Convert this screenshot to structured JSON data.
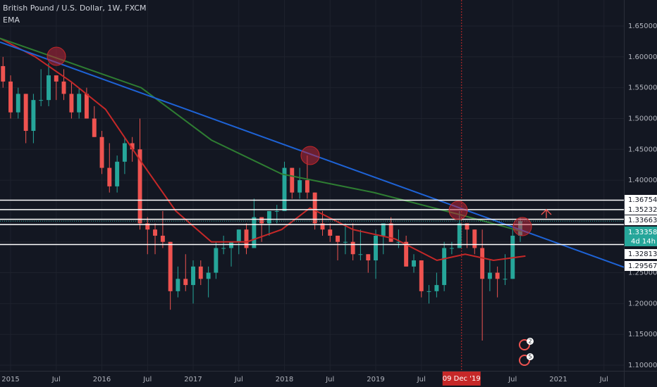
{
  "chart_data": {
    "type": "candlestick",
    "title": "British Pound / U.S. Dollar, 1W, FXCM",
    "subtitle": "EMA",
    "xlim": [
      2014.884,
      2021.718
    ],
    "ylim": [
      1.0909,
      1.6922
    ],
    "yticks": [
      {
        "value": 1.1,
        "label": "1.10000"
      },
      {
        "value": 1.15,
        "label": "1.15000"
      },
      {
        "value": 1.2,
        "label": "1.20000"
      },
      {
        "value": 1.25,
        "label": "1.25000"
      },
      {
        "value": 1.3,
        "label": "1.30000"
      },
      {
        "value": 1.35,
        "label": "1.35000"
      },
      {
        "value": 1.4,
        "label": "1.40000"
      },
      {
        "value": 1.45,
        "label": "1.45000"
      },
      {
        "value": 1.5,
        "label": "1.50000"
      },
      {
        "value": 1.55,
        "label": "1.55000"
      },
      {
        "value": 1.6,
        "label": "1.60000"
      },
      {
        "value": 1.65,
        "label": "1.65000"
      }
    ],
    "xticks": [
      2015,
      {
        "value": 2015.5,
        "label": "Jul"
      },
      2016,
      {
        "value": 2016.5,
        "label": "Jul"
      },
      2017,
      {
        "value": 2017.5,
        "label": "Jul"
      },
      2018,
      {
        "value": 2018.5,
        "label": "Jul"
      },
      2019,
      {
        "value": 2019.5,
        "label": "Jul"
      },
      {
        "value": 2020.5,
        "label": "Jul"
      },
      2021,
      {
        "value": 2021.5,
        "label": "Jul"
      }
    ],
    "grid": true,
    "up_color": "#26a69a",
    "down_color": "#ef5350",
    "x": [
      2014.917,
      2015.0,
      2015.083,
      2015.167,
      2015.25,
      2015.333,
      2015.417,
      2015.5,
      2015.583,
      2015.667,
      2015.75,
      2015.833,
      2015.917,
      2016.0,
      2016.083,
      2016.167,
      2016.25,
      2016.333,
      2016.417,
      2016.5,
      2016.583,
      2016.667,
      2016.75,
      2016.833,
      2016.917,
      2017.0,
      2017.083,
      2017.167,
      2017.25,
      2017.333,
      2017.417,
      2017.5,
      2017.583,
      2017.667,
      2017.75,
      2017.833,
      2017.917,
      2018.0,
      2018.083,
      2018.167,
      2018.25,
      2018.333,
      2018.417,
      2018.5,
      2018.583,
      2018.667,
      2018.75,
      2018.833,
      2018.917,
      2019.0,
      2019.083,
      2019.167,
      2019.25,
      2019.333,
      2019.417,
      2019.5,
      2019.583,
      2019.667,
      2019.75,
      2019.833,
      2019.917,
      2020.0,
      2020.083,
      2020.167,
      2020.25,
      2020.333,
      2020.417,
      2020.5,
      2020.583
    ],
    "ohlc": [
      [
        1.585,
        1.6,
        1.55,
        1.56
      ],
      [
        1.56,
        1.57,
        1.5,
        1.51
      ],
      [
        1.51,
        1.55,
        1.5,
        1.54
      ],
      [
        1.54,
        1.54,
        1.46,
        1.48
      ],
      [
        1.48,
        1.54,
        1.46,
        1.53
      ],
      [
        1.53,
        1.58,
        1.52,
        1.53
      ],
      [
        1.53,
        1.59,
        1.52,
        1.57
      ],
      [
        1.57,
        1.57,
        1.53,
        1.56
      ],
      [
        1.56,
        1.58,
        1.53,
        1.54
      ],
      [
        1.54,
        1.56,
        1.5,
        1.51
      ],
      [
        1.51,
        1.55,
        1.5,
        1.54
      ],
      [
        1.54,
        1.55,
        1.5,
        1.5
      ],
      [
        1.5,
        1.52,
        1.47,
        1.47
      ],
      [
        1.47,
        1.48,
        1.41,
        1.42
      ],
      [
        1.42,
        1.46,
        1.38,
        1.39
      ],
      [
        1.39,
        1.44,
        1.38,
        1.43
      ],
      [
        1.43,
        1.47,
        1.41,
        1.46
      ],
      [
        1.46,
        1.47,
        1.43,
        1.45
      ],
      [
        1.45,
        1.5,
        1.32,
        1.33
      ],
      [
        1.33,
        1.34,
        1.28,
        1.32
      ],
      [
        1.32,
        1.33,
        1.28,
        1.31
      ],
      [
        1.31,
        1.35,
        1.29,
        1.3
      ],
      [
        1.3,
        1.3,
        1.19,
        1.22
      ],
      [
        1.22,
        1.26,
        1.21,
        1.24
      ],
      [
        1.24,
        1.28,
        1.22,
        1.23
      ],
      [
        1.23,
        1.27,
        1.2,
        1.26
      ],
      [
        1.26,
        1.27,
        1.23,
        1.24
      ],
      [
        1.24,
        1.26,
        1.21,
        1.25
      ],
      [
        1.25,
        1.3,
        1.24,
        1.29
      ],
      [
        1.29,
        1.31,
        1.28,
        1.29
      ],
      [
        1.29,
        1.3,
        1.26,
        1.3
      ],
      [
        1.3,
        1.32,
        1.28,
        1.32
      ],
      [
        1.32,
        1.33,
        1.28,
        1.29
      ],
      [
        1.29,
        1.37,
        1.29,
        1.34
      ],
      [
        1.34,
        1.34,
        1.3,
        1.33
      ],
      [
        1.33,
        1.35,
        1.31,
        1.35
      ],
      [
        1.35,
        1.36,
        1.33,
        1.35
      ],
      [
        1.35,
        1.43,
        1.35,
        1.42
      ],
      [
        1.42,
        1.42,
        1.37,
        1.38
      ],
      [
        1.38,
        1.42,
        1.37,
        1.4
      ],
      [
        1.4,
        1.44,
        1.37,
        1.38
      ],
      [
        1.38,
        1.38,
        1.32,
        1.33
      ],
      [
        1.33,
        1.35,
        1.31,
        1.32
      ],
      [
        1.32,
        1.33,
        1.3,
        1.31
      ],
      [
        1.31,
        1.31,
        1.27,
        1.3
      ],
      [
        1.3,
        1.33,
        1.28,
        1.3
      ],
      [
        1.3,
        1.33,
        1.27,
        1.28
      ],
      [
        1.28,
        1.32,
        1.27,
        1.28
      ],
      [
        1.28,
        1.28,
        1.25,
        1.27
      ],
      [
        1.27,
        1.32,
        1.24,
        1.31
      ],
      [
        1.31,
        1.33,
        1.28,
        1.33
      ],
      [
        1.33,
        1.34,
        1.3,
        1.3
      ],
      [
        1.3,
        1.32,
        1.29,
        1.3
      ],
      [
        1.3,
        1.31,
        1.26,
        1.26
      ],
      [
        1.26,
        1.28,
        1.25,
        1.27
      ],
      [
        1.27,
        1.27,
        1.21,
        1.22
      ],
      [
        1.22,
        1.23,
        1.2,
        1.22
      ],
      [
        1.22,
        1.25,
        1.21,
        1.23
      ],
      [
        1.23,
        1.3,
        1.22,
        1.29
      ],
      [
        1.29,
        1.3,
        1.28,
        1.29
      ],
      [
        1.29,
        1.35,
        1.29,
        1.33
      ],
      [
        1.33,
        1.33,
        1.29,
        1.32
      ],
      [
        1.32,
        1.32,
        1.28,
        1.29
      ],
      [
        1.29,
        1.32,
        1.14,
        1.24
      ],
      [
        1.24,
        1.27,
        1.22,
        1.25
      ],
      [
        1.25,
        1.26,
        1.21,
        1.24
      ],
      [
        1.24,
        1.28,
        1.23,
        1.24
      ],
      [
        1.24,
        1.32,
        1.24,
        1.31
      ],
      [
        1.31,
        1.34,
        1.3,
        1.33358
      ]
    ],
    "lines": [
      {
        "color": "#c62828",
        "x": [
          2014.884,
          2015.27,
          2015.66,
          2016.04,
          2016.43,
          2016.81,
          2017.2,
          2017.59,
          2017.97,
          2018.28,
          2018.75,
          2019.21,
          2019.67,
          2019.98,
          2020.29,
          2020.64
        ],
        "values": [
          1.63,
          1.6,
          1.56,
          1.515,
          1.43,
          1.35,
          1.3,
          1.3,
          1.32,
          1.355,
          1.32,
          1.305,
          1.27,
          1.28,
          1.27,
          1.277
        ]
      },
      {
        "color": "#2e7d32",
        "x": [
          2014.884,
          2015.66,
          2016.43,
          2017.2,
          2017.97,
          2018.98,
          2019.9,
          2020.6
        ],
        "values": [
          1.63,
          1.59,
          1.55,
          1.465,
          1.41,
          1.38,
          1.345,
          1.317
        ]
      },
      {
        "color": "#1e63d6",
        "x": [
          2014.884,
          2021.718
        ],
        "values": [
          1.624,
          1.259
        ]
      }
    ],
    "levels": [
      1.36754,
      1.35232,
      1.33663,
      1.32813,
      1.29567
    ],
    "current_price": 1.33358,
    "countdown": "4d 14h",
    "crosshair": {
      "x": 2019.94,
      "label": "09 Dec '19"
    },
    "events": [
      "2",
      "5"
    ]
  }
}
